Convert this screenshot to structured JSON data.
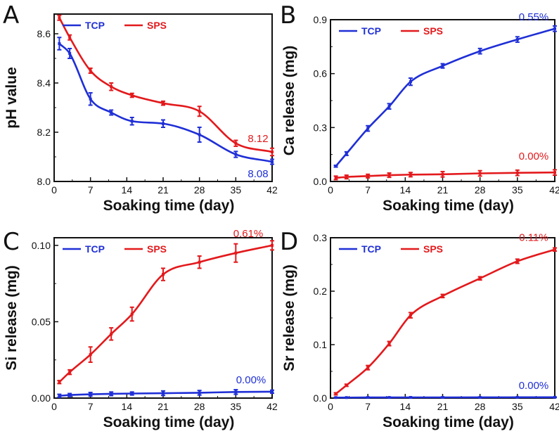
{
  "chart_data": [
    {
      "panel": "A",
      "type": "line",
      "xlabel": "Soaking time (day)",
      "ylabel": "pH value",
      "xlim": [
        0,
        42
      ],
      "ylim": [
        8.0,
        8.68
      ],
      "xticks": [
        0,
        7,
        14,
        21,
        28,
        35,
        42
      ],
      "xtick_labels": [
        "0",
        "7",
        "14",
        "21",
        "28",
        "35",
        "42"
      ],
      "yticks": [
        8.0,
        8.2,
        8.4,
        8.6
      ],
      "ytick_labels": [
        "8.0",
        "8.2",
        "8.4",
        "8.6"
      ],
      "legend_position": "top-left",
      "series": [
        {
          "name": "TCP",
          "color": "#1f2fd6",
          "x": [
            1,
            3,
            7,
            11,
            15,
            21,
            28,
            35,
            42
          ],
          "y": [
            8.56,
            8.52,
            8.335,
            8.28,
            8.245,
            8.235,
            8.19,
            8.11,
            8.08
          ],
          "err": [
            0.025,
            0.02,
            0.025,
            0.01,
            0.015,
            0.015,
            0.03,
            0.012,
            0.01
          ],
          "end_label": "8.08"
        },
        {
          "name": "SPS",
          "color": "#e3191c",
          "x": [
            1,
            3,
            7,
            11,
            15,
            21,
            28,
            35,
            42
          ],
          "y": [
            8.665,
            8.585,
            8.45,
            8.385,
            8.35,
            8.318,
            8.285,
            8.155,
            8.12
          ],
          "err": [
            0.01,
            0.01,
            0.01,
            0.015,
            0.008,
            0.008,
            0.02,
            0.012,
            0.015
          ],
          "end_label": "8.12"
        }
      ]
    },
    {
      "panel": "B",
      "type": "line",
      "xlabel": "Soaking time (day)",
      "ylabel": "Ca release (mg)",
      "xlim": [
        0,
        42
      ],
      "ylim": [
        0,
        0.9
      ],
      "xticks": [
        0,
        7,
        14,
        21,
        28,
        35,
        42
      ],
      "xtick_labels": [
        "0",
        "7",
        "14",
        "21",
        "28",
        "35",
        "42"
      ],
      "yticks": [
        0.0,
        0.3,
        0.6,
        0.9
      ],
      "ytick_labels": [
        "0.0",
        "0.3",
        "0.6",
        "0.9"
      ],
      "legend_position": "top-left",
      "series": [
        {
          "name": "TCP",
          "color": "#1f2fd6",
          "x": [
            1,
            3,
            7,
            11,
            15,
            21,
            28,
            35,
            42
          ],
          "y": [
            0.085,
            0.155,
            0.295,
            0.418,
            0.555,
            0.643,
            0.725,
            0.79,
            0.85
          ],
          "err": [
            0.005,
            0.01,
            0.015,
            0.015,
            0.02,
            0.012,
            0.015,
            0.015,
            0.015
          ],
          "end_label": "0.55%"
        },
        {
          "name": "SPS",
          "color": "#e3191c",
          "x": [
            1,
            3,
            7,
            11,
            15,
            21,
            28,
            35,
            42
          ],
          "y": [
            0.02,
            0.025,
            0.03,
            0.035,
            0.038,
            0.04,
            0.045,
            0.048,
            0.05
          ],
          "err": [
            0.01,
            0.01,
            0.01,
            0.012,
            0.012,
            0.015,
            0.015,
            0.015,
            0.015
          ],
          "end_label": "0.00%"
        }
      ]
    },
    {
      "panel": "C",
      "type": "line",
      "xlabel": "Soaking time (day)",
      "ylabel": "Si release (mg)",
      "xlim": [
        0,
        42
      ],
      "ylim": [
        0,
        0.105
      ],
      "xticks": [
        0,
        7,
        14,
        21,
        28,
        35,
        42
      ],
      "xtick_labels": [
        "0",
        "7",
        "14",
        "21",
        "28",
        "35",
        "42"
      ],
      "yticks": [
        0.0,
        0.05,
        0.1
      ],
      "ytick_labels": [
        "0.00",
        "0.05",
        "0.10"
      ],
      "legend_position": "top-left",
      "series": [
        {
          "name": "TCP",
          "color": "#1f2fd6",
          "x": [
            1,
            3,
            7,
            11,
            15,
            21,
            28,
            35,
            42
          ],
          "y": [
            0.0015,
            0.002,
            0.0025,
            0.0028,
            0.003,
            0.0032,
            0.0035,
            0.004,
            0.0042
          ],
          "err": [
            0.001,
            0.001,
            0.0012,
            0.0012,
            0.001,
            0.0015,
            0.0015,
            0.0015,
            0.001
          ],
          "end_label": "0.00%"
        },
        {
          "name": "SPS",
          "color": "#e3191c",
          "x": [
            1,
            3,
            7,
            11,
            15,
            21,
            28,
            35,
            42
          ],
          "y": [
            0.0105,
            0.017,
            0.0285,
            0.042,
            0.055,
            0.081,
            0.089,
            0.095,
            0.1
          ],
          "err": [
            0.001,
            0.0015,
            0.005,
            0.004,
            0.0045,
            0.004,
            0.004,
            0.006,
            0.003
          ],
          "end_label": "0.61%"
        }
      ]
    },
    {
      "panel": "D",
      "type": "line",
      "xlabel": "Soaking time (day)",
      "ylabel": "Sr release (mg)",
      "xlim": [
        0,
        42
      ],
      "ylim": [
        0,
        0.3
      ],
      "xticks": [
        0,
        7,
        14,
        21,
        28,
        35,
        42
      ],
      "xtick_labels": [
        "0",
        "7",
        "14",
        "21",
        "28",
        "35",
        "42"
      ],
      "yticks": [
        0.0,
        0.1,
        0.2,
        0.3
      ],
      "ytick_labels": [
        "0.0",
        "0.1",
        "0.2",
        "0.3"
      ],
      "legend_position": "top-left",
      "series": [
        {
          "name": "TCP",
          "color": "#1f2fd6",
          "x": [
            1,
            3,
            7,
            11,
            15,
            21,
            28,
            35,
            42
          ],
          "y": [
            0.001,
            0.001,
            0.0012,
            0.0012,
            0.0013,
            0.0013,
            0.0014,
            0.0015,
            0.0015
          ],
          "err": [
            0.0005,
            0.0005,
            0.0005,
            0.0005,
            0.0005,
            0.0005,
            0.0005,
            0.0005,
            0.0005
          ],
          "end_label": "0.00%"
        },
        {
          "name": "SPS",
          "color": "#e3191c",
          "x": [
            1,
            3,
            7,
            11,
            15,
            21,
            28,
            35,
            42
          ],
          "y": [
            0.008,
            0.024,
            0.057,
            0.102,
            0.155,
            0.191,
            0.224,
            0.256,
            0.278
          ],
          "err": [
            0.002,
            0.002,
            0.004,
            0.004,
            0.005,
            0.003,
            0.003,
            0.004,
            0.003
          ],
          "end_label": "0.11%"
        }
      ]
    }
  ]
}
